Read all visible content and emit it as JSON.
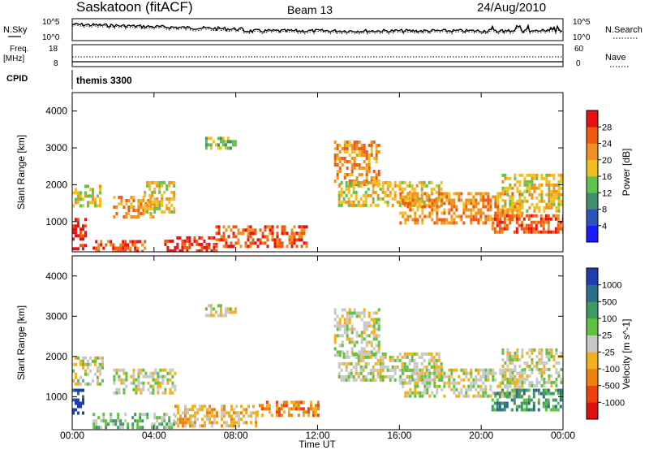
{
  "header": {
    "station": "Saskatoon (fitACF)",
    "beam": "Beam 13",
    "date": "24/Aug/2010"
  },
  "strips": {
    "nsky_label": "N.Sky",
    "nsearch_label": "N.Search",
    "freq_label_1": "Freq.",
    "freq_label_2": "[MHz]",
    "nave_label": "Nave",
    "cpid_label": "CPID",
    "cpid_value": "themis 3300",
    "nsky_ticks": [
      "10^5",
      "10^0"
    ],
    "nsky_right_ticks": [
      "10^5",
      "10^0"
    ],
    "freq_ticks": [
      "18",
      "8"
    ],
    "nave_ticks": [
      "60",
      "0"
    ]
  },
  "axes": {
    "ylabel": "Slant Range [km]",
    "xlabel": "Time UT",
    "y_ticks": [
      "1000",
      "2000",
      "3000",
      "4000"
    ],
    "x_ticks": [
      "00:00",
      "04:00",
      "08:00",
      "12:00",
      "16:00",
      "20:00",
      "00:00"
    ]
  },
  "chart_data": [
    {
      "type": "heatmap",
      "quantity": "Power",
      "colorbar_label": "Power [dB]",
      "colorbar_ticks": [
        "4",
        "8",
        "12",
        "16",
        "20",
        "24",
        "28"
      ],
      "colorbar_colors": [
        "#1a1aff",
        "#2b55b8",
        "#3f8f6e",
        "#5fc24a",
        "#f0c020",
        "#f09020",
        "#f05a10",
        "#e81010"
      ],
      "xlim": [
        0,
        24
      ],
      "ylim": [
        180,
        4500
      ],
      "x_unit": "hours UT",
      "y_unit": "km",
      "regions": [
        {
          "t0": 0.0,
          "t1": 0.6,
          "r0": 300,
          "r1": 1100,
          "level": 7
        },
        {
          "t0": 0.0,
          "t1": 1.4,
          "r0": 1400,
          "r1": 2000,
          "level": 4
        },
        {
          "t0": 1.0,
          "t1": 3.5,
          "r0": 200,
          "r1": 500,
          "level": 6
        },
        {
          "t0": 2.0,
          "t1": 4.0,
          "r0": 1100,
          "r1": 1700,
          "level": 5
        },
        {
          "t0": 3.5,
          "t1": 5.0,
          "r0": 1300,
          "r1": 2100,
          "level": 4
        },
        {
          "t0": 4.5,
          "t1": 7.0,
          "r0": 200,
          "r1": 600,
          "level": 7
        },
        {
          "t0": 6.5,
          "t1": 8.0,
          "r0": 3000,
          "r1": 3300,
          "level": 3
        },
        {
          "t0": 7.0,
          "t1": 11.5,
          "r0": 300,
          "r1": 900,
          "level": 6
        },
        {
          "t0": 12.8,
          "t1": 15.0,
          "r0": 2000,
          "r1": 3200,
          "level": 5
        },
        {
          "t0": 13.0,
          "t1": 18.0,
          "r0": 1400,
          "r1": 2100,
          "level": 4
        },
        {
          "t0": 16.0,
          "t1": 22.0,
          "r0": 1000,
          "r1": 1800,
          "level": 5
        },
        {
          "t0": 20.5,
          "t1": 24.0,
          "r0": 700,
          "r1": 1200,
          "level": 6
        },
        {
          "t0": 21.0,
          "t1": 24.0,
          "r0": 1300,
          "r1": 2300,
          "level": 4
        }
      ]
    },
    {
      "type": "heatmap",
      "quantity": "Velocity",
      "colorbar_label": "Velocity [m s^-1]",
      "colorbar_ticks": [
        "1000",
        "500",
        "100",
        "25",
        "-25",
        "-100",
        "-500",
        "-1000"
      ],
      "colorbar_colors": [
        "#1f3fb0",
        "#2a6e8c",
        "#3d9a60",
        "#60c040",
        "#c8c8c8",
        "#f0b020",
        "#f08010",
        "#f04010",
        "#e01010"
      ],
      "xlim": [
        0,
        24
      ],
      "ylim": [
        180,
        4500
      ],
      "x_unit": "hours UT",
      "y_unit": "km",
      "regions": [
        {
          "t0": 0.0,
          "t1": 0.5,
          "r0": 600,
          "r1": 1200,
          "level": 0
        },
        {
          "t0": 0.0,
          "t1": 1.5,
          "r0": 1300,
          "r1": 2000,
          "level": 4
        },
        {
          "t0": 1.0,
          "t1": 5.0,
          "r0": 200,
          "r1": 600,
          "level": 3
        },
        {
          "t0": 2.0,
          "t1": 5.0,
          "r0": 1100,
          "r1": 1700,
          "level": 4
        },
        {
          "t0": 5.0,
          "t1": 9.0,
          "r0": 300,
          "r1": 800,
          "level": 5
        },
        {
          "t0": 6.5,
          "t1": 8.0,
          "r0": 3000,
          "r1": 3300,
          "level": 4
        },
        {
          "t0": 9.0,
          "t1": 12.0,
          "r0": 500,
          "r1": 900,
          "level": 6
        },
        {
          "t0": 12.8,
          "t1": 15.0,
          "r0": 2000,
          "r1": 3200,
          "level": 4
        },
        {
          "t0": 13.0,
          "t1": 18.0,
          "r0": 1400,
          "r1": 2100,
          "level": 4
        },
        {
          "t0": 16.0,
          "t1": 22.0,
          "r0": 1000,
          "r1": 1700,
          "level": 4
        },
        {
          "t0": 20.5,
          "t1": 24.0,
          "r0": 700,
          "r1": 1200,
          "level": 2
        },
        {
          "t0": 21.0,
          "t1": 24.0,
          "r0": 1300,
          "r1": 2200,
          "level": 4
        }
      ]
    }
  ]
}
